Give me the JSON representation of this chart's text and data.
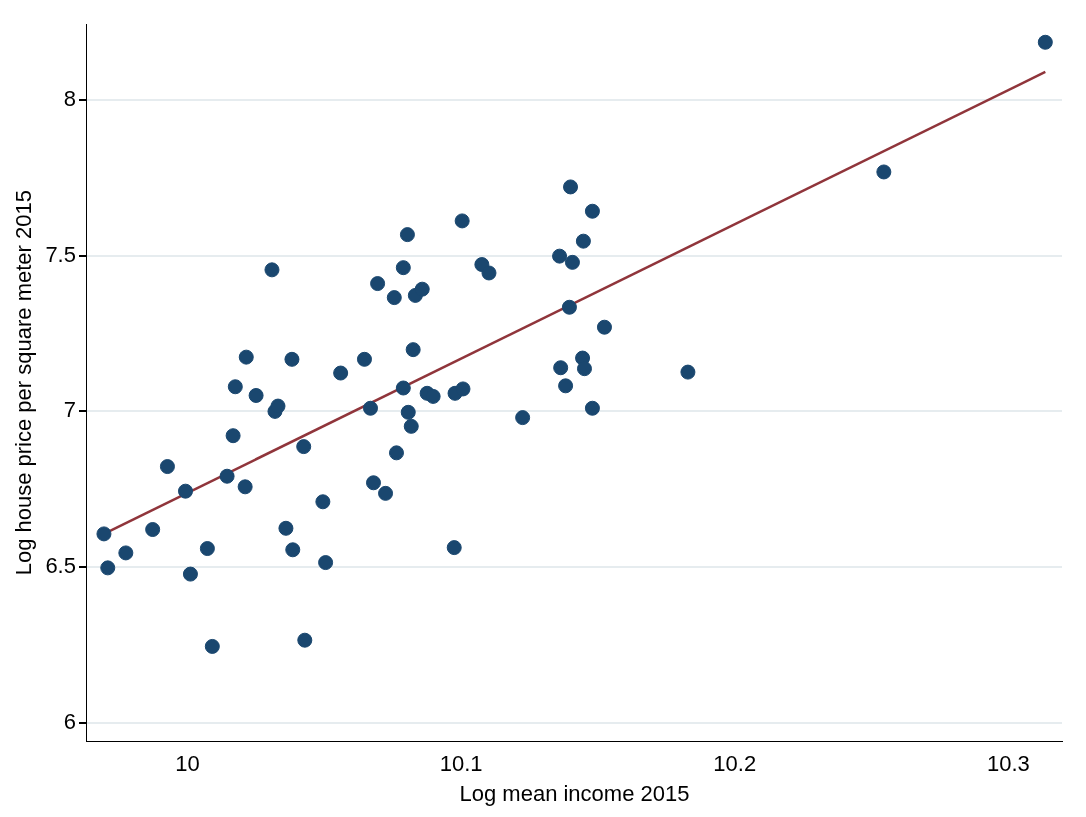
{
  "chart_data": {
    "type": "scatter",
    "xlabel": "Log mean income 2015",
    "ylabel": "Log house price per square meter 2015",
    "xlim": [
      9.9633,
      10.3196
    ],
    "ylim": [
      5.942,
      8.242
    ],
    "xticks": [
      10,
      10.1,
      10.2,
      10.3
    ],
    "yticks": [
      6,
      6.5,
      7,
      7.5,
      8
    ],
    "grid": "y",
    "legend": false,
    "marker": "circle",
    "series": [
      {
        "type": "scatter",
        "color": "#1a476f",
        "x": [
          9.9695,
          9.9709,
          9.9775,
          9.9873,
          9.9927,
          9.9993,
          10.0011,
          10.0073,
          10.0091,
          10.0145,
          10.0167,
          10.0175,
          10.0211,
          10.0215,
          10.0251,
          10.0309,
          10.032,
          10.0331,
          10.036,
          10.0382,
          10.0385,
          10.0425,
          10.0429,
          10.0495,
          10.0505,
          10.056,
          10.0647,
          10.0669,
          10.068,
          10.0695,
          10.0724,
          10.0756,
          10.0764,
          10.0789,
          10.0789,
          10.0804,
          10.0807,
          10.0818,
          10.0825,
          10.0833,
          10.0858,
          10.0876,
          10.0898,
          10.0975,
          10.0978,
          10.1004,
          10.1007,
          10.1076,
          10.1102,
          10.1225,
          10.136,
          10.1364,
          10.1382,
          10.14,
          10.1396,
          10.1407,
          10.1444,
          10.1447,
          10.1451,
          10.148,
          10.148,
          10.1524,
          10.1829,
          10.2545,
          10.3135
        ],
        "values": [
          6.607,
          6.498,
          6.546,
          6.621,
          6.823,
          6.744,
          6.478,
          6.56,
          6.246,
          6.792,
          6.922,
          7.079,
          6.758,
          7.174,
          7.051,
          7.454,
          7.0,
          7.017,
          6.625,
          7.167,
          6.556,
          6.887,
          6.266,
          6.71,
          6.515,
          7.123,
          7.167,
          7.01,
          6.771,
          7.41,
          6.737,
          7.365,
          6.867,
          7.461,
          7.075,
          7.567,
          6.997,
          6.952,
          7.198,
          7.372,
          7.392,
          7.058,
          7.048,
          6.563,
          7.058,
          7.611,
          7.072,
          7.471,
          7.444,
          6.98,
          7.498,
          7.14,
          7.082,
          7.72,
          7.334,
          7.478,
          7.171,
          7.546,
          7.137,
          7.642,
          7.01,
          7.27,
          7.126,
          7.768,
          8.184
        ]
      },
      {
        "type": "line",
        "color": "#90353b",
        "x": [
          9.9695,
          10.3135
        ],
        "values": [
          6.607,
          8.089
        ],
        "marker": "none"
      }
    ]
  }
}
